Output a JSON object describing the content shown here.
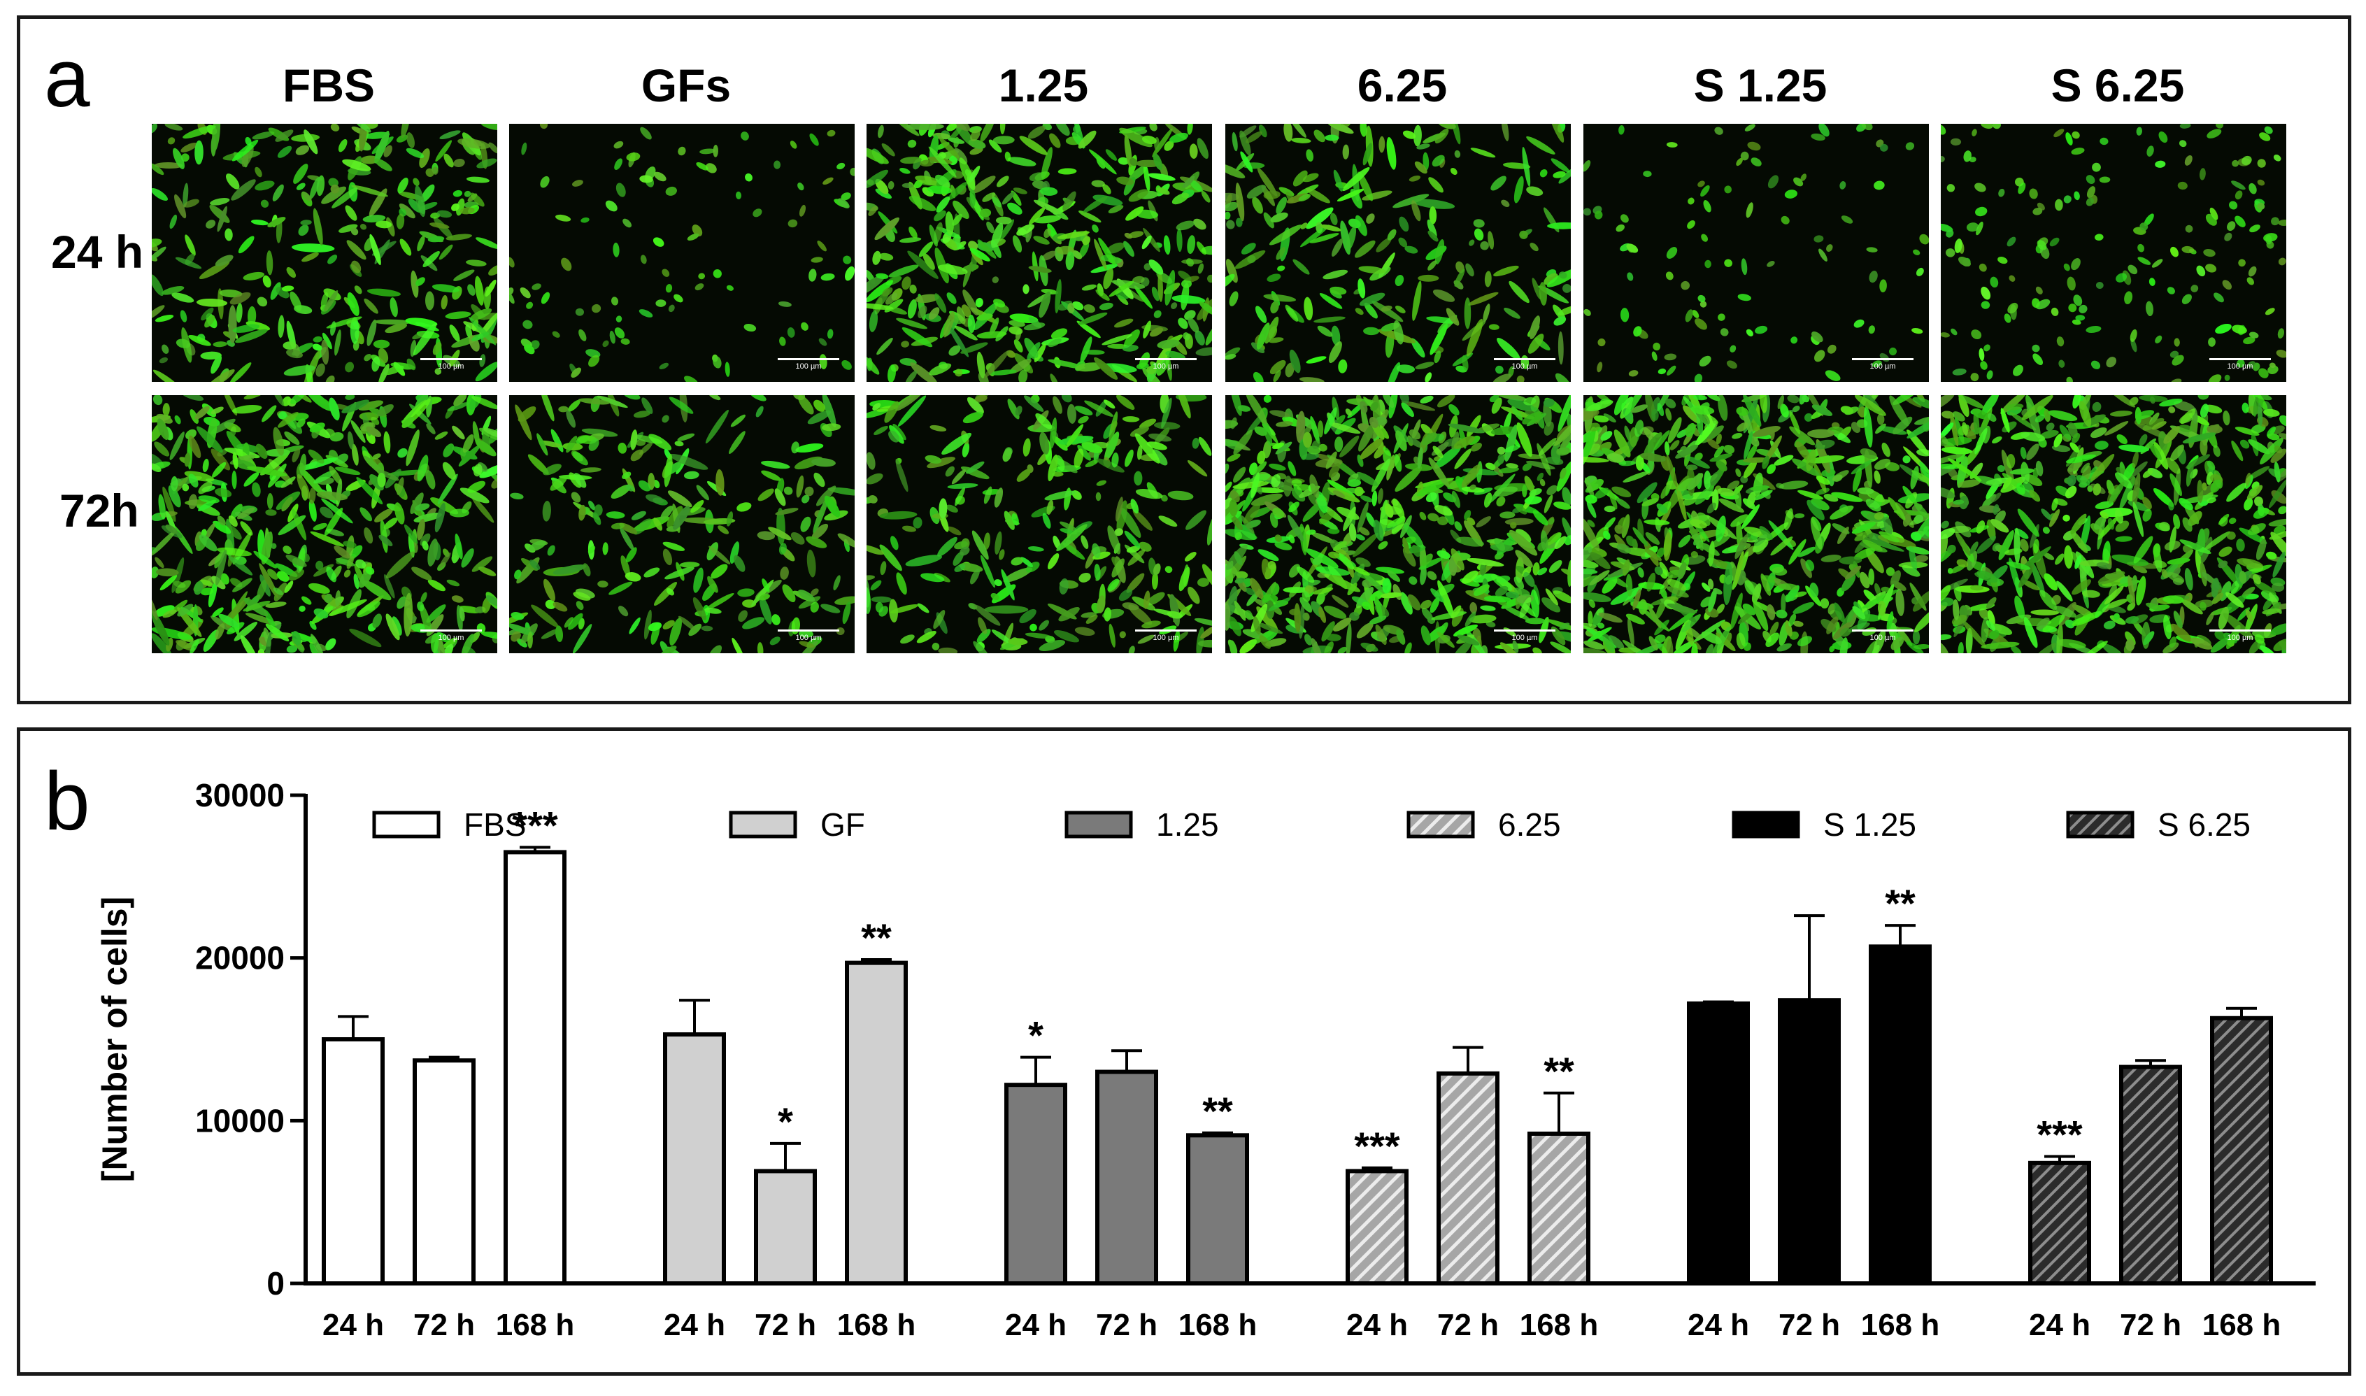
{
  "panel_a": {
    "letter": "a",
    "columns": [
      "FBS",
      "GFs",
      "1.25",
      "6.25",
      "S 1.25",
      "S 6.25"
    ],
    "rows": [
      "24 h",
      "72h"
    ],
    "scale_label": "100 µm",
    "density": [
      [
        0.42,
        0.1,
        0.62,
        0.32,
        0.09,
        0.22
      ],
      [
        0.7,
        0.34,
        0.4,
        0.92,
        0.95,
        0.86
      ]
    ],
    "cell_color": "#4be62a"
  },
  "panel_b": {
    "letter": "b",
    "chart_data": {
      "type": "bar",
      "ylabel": "[Number of cells]",
      "xlabel": "",
      "ylim": [
        0,
        30000
      ],
      "yticks": [
        "0",
        "10000",
        "20000",
        "30000"
      ],
      "grid": false,
      "legend_position": "top",
      "categories": [
        "24 h",
        "72 h",
        "168 h"
      ],
      "series": [
        {
          "name": "FBS",
          "fill": "#ffffff",
          "pattern": "none",
          "values": [
            15000,
            13700,
            26500
          ],
          "errors": [
            1400,
            200,
            300
          ],
          "stars": [
            "",
            "",
            "***"
          ]
        },
        {
          "name": "GF",
          "fill": "#d0d0d0",
          "pattern": "none",
          "values": [
            15300,
            6900,
            19700
          ],
          "errors": [
            2100,
            1700,
            200
          ],
          "stars": [
            "",
            "*",
            "**"
          ]
        },
        {
          "name": "1.25",
          "fill": "#7a7a7a",
          "pattern": "none",
          "values": [
            12200,
            13000,
            9100
          ],
          "errors": [
            1700,
            1300,
            150
          ],
          "stars": [
            "*",
            "",
            "**"
          ]
        },
        {
          "name": "6.25",
          "fill": "#b0b0b0",
          "pattern": "diag-light",
          "values": [
            6900,
            12900,
            9200
          ],
          "errors": [
            200,
            1600,
            2500
          ],
          "stars": [
            "***",
            "",
            "**"
          ]
        },
        {
          "name": "S 1.25",
          "fill": "#000000",
          "pattern": "none",
          "values": [
            17200,
            17400,
            20700
          ],
          "errors": [
            100,
            5200,
            1300
          ],
          "stars": [
            "",
            "",
            "**"
          ]
        },
        {
          "name": "S 6.25",
          "fill": "#3a3a3a",
          "pattern": "diag-dark",
          "values": [
            7400,
            13300,
            16300
          ],
          "errors": [
            400,
            400,
            600
          ],
          "stars": [
            "***",
            "",
            ""
          ]
        }
      ]
    }
  }
}
